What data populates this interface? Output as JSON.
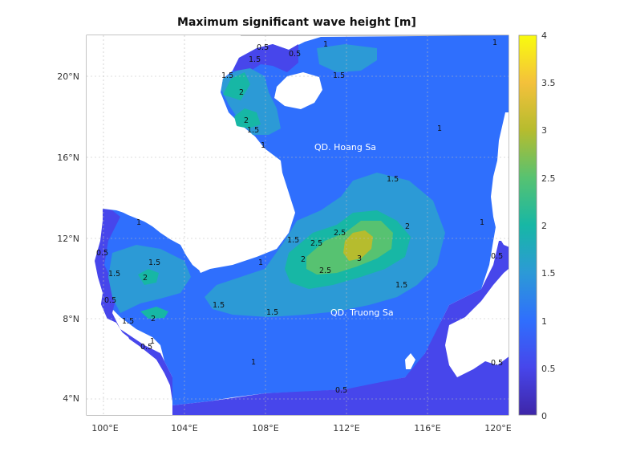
{
  "map": {
    "title": "Maximum significant wave height [m]",
    "lon_ticks": [
      "100°E",
      "104°E",
      "108°E",
      "112°E",
      "116°E",
      "120°E"
    ],
    "lat_ticks": [
      "20°N",
      "16°N",
      "12°N",
      "8°N",
      "4°N"
    ],
    "colorbar": {
      "ticks": [
        "4",
        "3.5",
        "3",
        "2.5",
        "2",
        "1.5",
        "1",
        "0.5",
        "0"
      ],
      "range": [
        0,
        4
      ],
      "colors": [
        "#3e26a8",
        "#4746eb",
        "#2f6ffd",
        "#2c9ad6",
        "#17b7a5",
        "#57c271",
        "#b6bc2e",
        "#f4c13b",
        "#f9fb0e"
      ]
    },
    "places": [
      {
        "id": "hoang-sa",
        "text": "QD. Hoang Sa"
      },
      {
        "id": "truong-sa",
        "text": "QD. Truong Sa"
      }
    ],
    "contour_labels": [
      "1.5",
      "0.5",
      "0.5",
      "1.5",
      "1",
      "1.5",
      "2",
      "2",
      "1.5",
      "1",
      "1",
      "1.5",
      "1.5",
      "2",
      "2.5",
      "2.5",
      "2",
      "3",
      "2.5",
      "1.5",
      "1",
      "1",
      "1.5",
      "2",
      "1.5",
      "0.5",
      "1.5",
      "2",
      "1.5",
      "1.5",
      "1",
      "1",
      "0.5",
      "0.5",
      "0.5",
      "0.5",
      "1",
      "0.5",
      "1"
    ]
  }
}
